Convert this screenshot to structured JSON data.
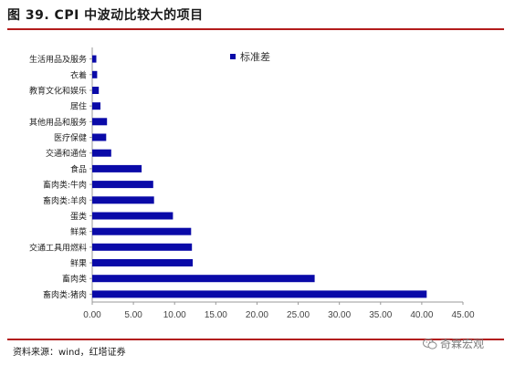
{
  "figure": {
    "title": "图 39. CPI 中波动比较大的项目",
    "source": "资料来源：wind，红塔证券",
    "watermark": "奇霖宏观"
  },
  "chart_data": {
    "type": "bar",
    "orientation": "horizontal",
    "title": "",
    "xlabel": "",
    "ylabel": "",
    "categories": [
      "畜肉类:猪肉",
      "畜肉类",
      "鲜果",
      "交通工具用燃料",
      "鲜菜",
      "蛋类",
      "畜肉类:羊肉",
      "畜肉类:牛肉",
      "食品",
      "交通和通信",
      "医疗保健",
      "其他用品和服务",
      "居住",
      "教育文化和娱乐",
      "衣着",
      "生活用品及服务"
    ],
    "series": [
      {
        "name": "标准差",
        "color": "#0a0aa8",
        "values": [
          40.6,
          27.0,
          12.2,
          12.1,
          12.0,
          9.8,
          7.5,
          7.4,
          6.0,
          2.3,
          1.7,
          1.8,
          1.0,
          0.8,
          0.6,
          0.5
        ]
      }
    ],
    "xlim": [
      0,
      45
    ],
    "xticks": [
      "0.00",
      "5.00",
      "10.00",
      "15.00",
      "20.00",
      "25.00",
      "30.00",
      "35.00",
      "40.00",
      "45.00"
    ],
    "grid": false,
    "legend_position": "top-right"
  }
}
